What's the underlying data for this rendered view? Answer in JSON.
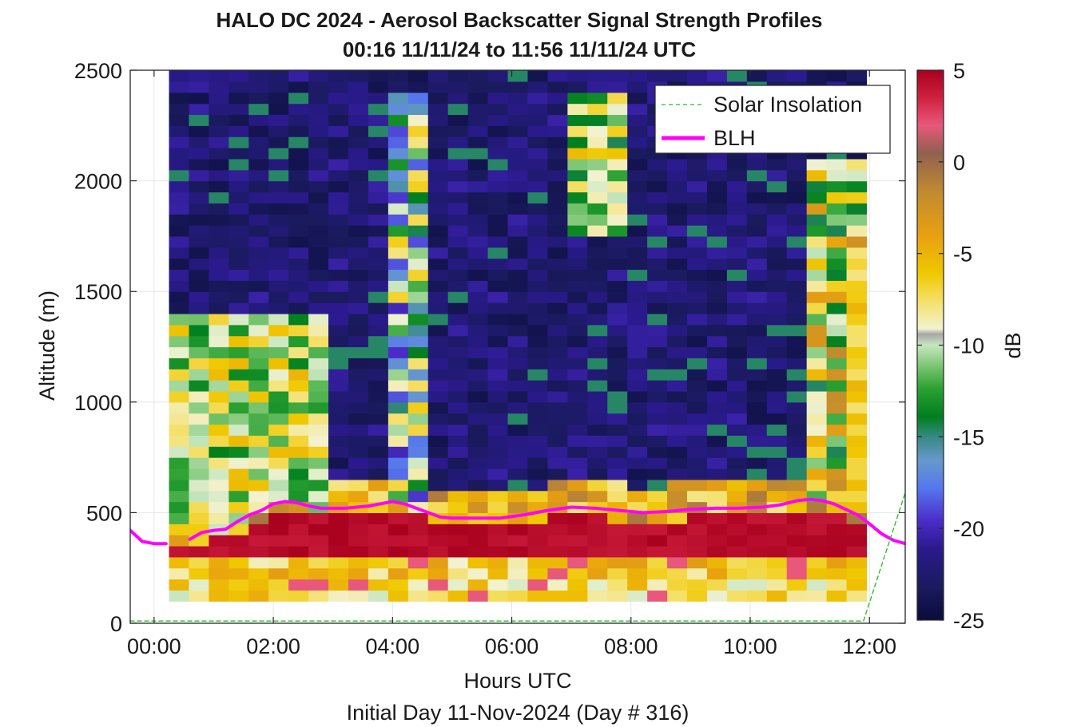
{
  "chart_data": {
    "type": "heatmap",
    "title": "HALO DC 2024 - Aerosol Backscatter Signal Strength Profiles",
    "subtitle": "00:16 11/11/24 to 11:56 11/11/24  UTC",
    "xlabel": "Hours UTC",
    "ylabel": "Altitude (m)",
    "footer": "Initial Day 11-Nov-2024 (Day # 316)",
    "xlim": [
      -0.4,
      12.6
    ],
    "ylim": [
      0,
      2500
    ],
    "xticks": [
      0,
      2,
      4,
      6,
      8,
      10,
      12
    ],
    "xtick_labels": [
      "00:00",
      "02:00",
      "04:00",
      "06:00",
      "08:00",
      "10:00",
      "12:00"
    ],
    "yticks": [
      0,
      500,
      1000,
      1500,
      2000,
      2500
    ],
    "ytick_labels": [
      "0",
      "500",
      "1000",
      "1500",
      "2000",
      "2500"
    ],
    "grid": true,
    "colorbar": {
      "label": "dB",
      "range": [
        -25,
        5
      ],
      "ticks": [
        5,
        0,
        -5,
        -10,
        -15,
        -20,
        -25
      ],
      "tick_labels": [
        "5",
        "0",
        "-5",
        "-10",
        "-15",
        "-20",
        "-25"
      ]
    },
    "heatmap": {
      "x_start": 0.25,
      "x_end": 11.95,
      "y_start": 100,
      "y_end": 2500,
      "n_columns": 35,
      "n_rows": 48,
      "z_units": "dB",
      "approximate": true
    },
    "legend": {
      "position": "top-right",
      "entries": [
        "Solar Insolation",
        "BLH"
      ]
    },
    "series": [
      {
        "name": "BLH",
        "color": "#ff00ff",
        "x": [
          0.6,
          0.8,
          1.0,
          1.2,
          1.4,
          1.6,
          1.8,
          2.0,
          2.2,
          2.4,
          2.6,
          2.8,
          3.0,
          3.2,
          3.4,
          3.6,
          3.8,
          4.0,
          4.2,
          4.4,
          4.6,
          4.8,
          5.0,
          5.4,
          5.8,
          6.2,
          6.6,
          7.0,
          7.4,
          7.8,
          8.2,
          8.6,
          9.0,
          9.4,
          9.8,
          10.2,
          10.5,
          10.8,
          11.0,
          11.2,
          11.4,
          11.6,
          11.8,
          12.0,
          12.2,
          12.4,
          12.6
        ],
        "y": [
          380,
          410,
          420,
          425,
          460,
          490,
          510,
          540,
          550,
          545,
          530,
          520,
          520,
          520,
          525,
          530,
          540,
          550,
          540,
          520,
          500,
          480,
          475,
          475,
          475,
          490,
          510,
          525,
          520,
          510,
          500,
          505,
          515,
          520,
          520,
          525,
          535,
          555,
          560,
          555,
          540,
          515,
          490,
          450,
          405,
          375,
          360
        ],
        "gaps": [
          {
            "x": [
              -0.4,
              -0.3,
              -0.2,
              -0.1,
              0.0,
              0.2
            ],
            "y": [
              420,
              395,
              370,
              365,
              360,
              360
            ]
          }
        ]
      },
      {
        "name": "Solar Insolation",
        "color": "#22bb22",
        "style": "dashed",
        "x": [
          -0.4,
          11.9,
          12.6
        ],
        "y": [
          10,
          10,
          590
        ]
      }
    ]
  }
}
